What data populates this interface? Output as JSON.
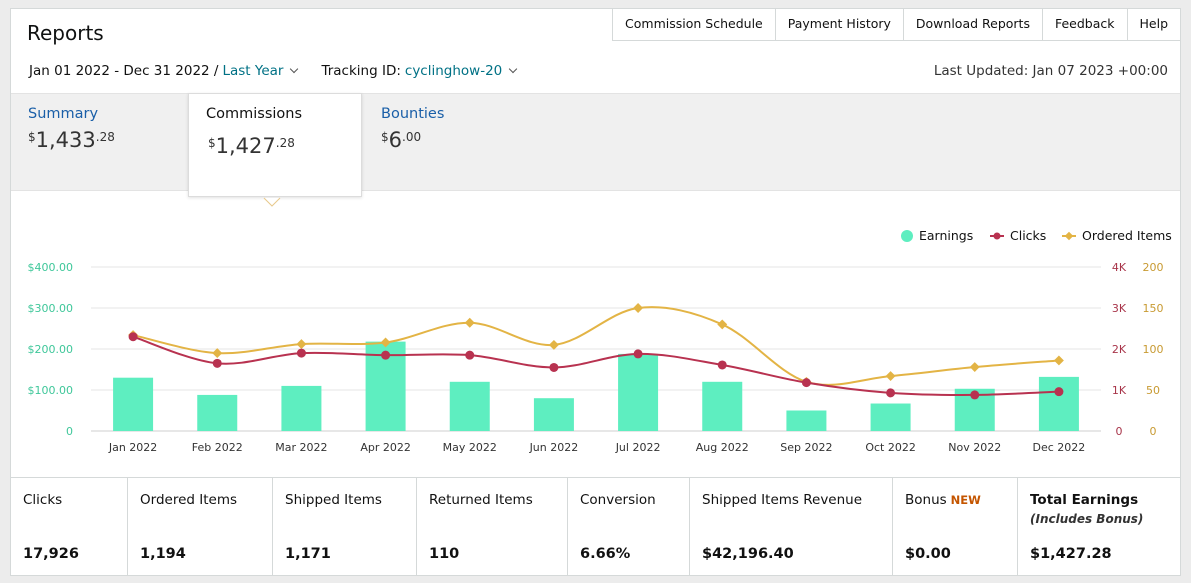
{
  "page": {
    "title": "Reports"
  },
  "toplinks": [
    "Commission Schedule",
    "Payment History",
    "Download Reports",
    "Feedback",
    "Help"
  ],
  "filters": {
    "date_range": "Jan 01 2022 - Dec 31 2022 /",
    "period": "Last Year",
    "tracking_label": "Tracking ID:",
    "tracking_id": "cyclinghow-20",
    "last_updated": "Last Updated: Jan 07 2023 +00:00"
  },
  "tabs": {
    "summary": {
      "label": "Summary",
      "currency": "$",
      "whole": "1,433",
      "cents": ".28"
    },
    "commissions": {
      "label": "Commissions",
      "currency": "$",
      "whole": "1,427",
      "cents": ".28"
    },
    "bounties": {
      "label": "Bounties",
      "currency": "$",
      "whole": "6",
      "cents": ".00"
    }
  },
  "colors": {
    "earnings": "#5eeec0",
    "clicks": "#b83250",
    "ordered": "#e3b445",
    "link": "#007185",
    "tab_link": "#1a5fa8",
    "new_badge": "#c45500"
  },
  "chart_data": {
    "type": "bar+line",
    "categories": [
      "Jan 2022",
      "Feb 2022",
      "Mar 2022",
      "Apr 2022",
      "May 2022",
      "Jun 2022",
      "Jul 2022",
      "Aug 2022",
      "Sep 2022",
      "Oct 2022",
      "Nov 2022",
      "Dec 2022"
    ],
    "series": [
      {
        "name": "Earnings",
        "type": "bar",
        "axis": "left",
        "values": [
          130,
          88,
          110,
          218,
          120,
          80,
          188,
          120,
          50,
          67,
          103,
          132
        ]
      },
      {
        "name": "Clicks",
        "type": "line",
        "axis": "right1",
        "values": [
          2300,
          1650,
          1900,
          1850,
          1850,
          1550,
          1880,
          1610,
          1180,
          930,
          880,
          960
        ]
      },
      {
        "name": "Ordered Items",
        "type": "line",
        "axis": "right2",
        "values": [
          117,
          95,
          106,
          108,
          132,
          105,
          150,
          130,
          60,
          67,
          78,
          86
        ]
      }
    ],
    "left_axis": {
      "ticks": [
        "0",
        "$100.00",
        "$200.00",
        "$300.00",
        "$400.00"
      ],
      "range": [
        0,
        400
      ]
    },
    "right1_axis": {
      "ticks": [
        "0",
        "1K",
        "2K",
        "3K",
        "4K"
      ],
      "range": [
        0,
        4000
      ]
    },
    "right2_axis": {
      "ticks": [
        "0",
        "50",
        "100",
        "150",
        "200"
      ],
      "range": [
        0,
        200
      ]
    },
    "legend": [
      "Earnings",
      "Clicks",
      "Ordered Items"
    ],
    "legend_position": "top-right",
    "grid": true
  },
  "stats": [
    {
      "label": "Clicks",
      "value": "17,926"
    },
    {
      "label": "Ordered Items",
      "value": "1,194"
    },
    {
      "label": "Shipped Items",
      "value": "1,171"
    },
    {
      "label": "Returned Items",
      "value": "110"
    },
    {
      "label": "Conversion",
      "value": "6.66%"
    },
    {
      "label": "Shipped Items Revenue",
      "value": "$42,196.40"
    },
    {
      "label": "Bonus",
      "badge": "NEW",
      "value": "$0.00"
    },
    {
      "label": "Total Earnings",
      "sub": "(Includes Bonus)",
      "value": "$1,427.28"
    }
  ]
}
